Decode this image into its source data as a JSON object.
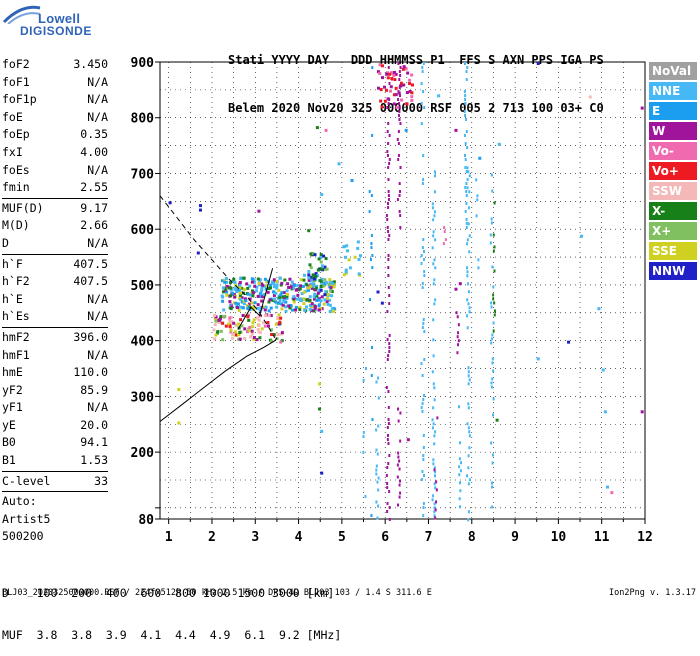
{
  "logo": {
    "line1": "Lowell",
    "line2": "DIGISONDE"
  },
  "header": {
    "line1": "Stati YYYY DAY   DDD HHMMSS P1  FFS S AXN PPS IGA PS",
    "line2": "Belem 2020 Nov20 325 000000 RSF 005 2 713 100 03+ C0"
  },
  "params": [
    {
      "k": "foF2",
      "v": "3.450"
    },
    {
      "k": "foF1",
      "v": "N/A"
    },
    {
      "k": "foF1p",
      "v": "N/A"
    },
    {
      "k": "foE",
      "v": "N/A"
    },
    {
      "k": "foEp",
      "v": "0.35"
    },
    {
      "k": "fxI",
      "v": "4.00"
    },
    {
      "k": "foEs",
      "v": "N/A"
    },
    {
      "k": "fmin",
      "v": "2.55"
    },
    {
      "sep": true
    },
    {
      "k": "MUF(D)",
      "v": "9.17"
    },
    {
      "k": "M(D)",
      "v": "2.66"
    },
    {
      "k": "D",
      "v": "N/A"
    },
    {
      "sep": true
    },
    {
      "k": "h`F",
      "v": "407.5"
    },
    {
      "k": "h`F2",
      "v": "407.5"
    },
    {
      "k": "h`E",
      "v": "N/A"
    },
    {
      "k": "h`Es",
      "v": "N/A"
    },
    {
      "sep": true
    },
    {
      "k": "hmF2",
      "v": "396.0"
    },
    {
      "k": "hmF1",
      "v": "N/A"
    },
    {
      "k": "hmE",
      "v": "110.0"
    },
    {
      "k": "yF2",
      "v": "85.9"
    },
    {
      "k": "yF1",
      "v": "N/A"
    },
    {
      "k": "yE",
      "v": "20.0"
    },
    {
      "k": "B0",
      "v": "94.1"
    },
    {
      "k": "B1",
      "v": "1.53"
    },
    {
      "sep": true
    },
    {
      "k": "C-level",
      "v": "33"
    },
    {
      "sep": true
    },
    {
      "k": "Auto:",
      "v": ""
    },
    {
      "k": "Artist5",
      "v": ""
    },
    {
      "k": "500200",
      "v": ""
    }
  ],
  "legend": [
    {
      "label": "NoVal",
      "color": "#a0a0a0"
    },
    {
      "label": "NNE",
      "color": "#45b8f5"
    },
    {
      "label": "E",
      "color": "#1c9ef0"
    },
    {
      "label": "W",
      "color": "#a0149c"
    },
    {
      "label": "Vo-",
      "color": "#f06ab0"
    },
    {
      "label": "Vo+",
      "color": "#ee1a22"
    },
    {
      "label": "SSW",
      "color": "#f4b8b8"
    },
    {
      "label": "X-",
      "color": "#188018"
    },
    {
      "label": "X+",
      "color": "#80c060"
    },
    {
      "label": "SSE",
      "color": "#d0d020"
    },
    {
      "label": "NNW",
      "color": "#2020c8"
    }
  ],
  "bottom": {
    "line1": "D    100  200  400  600  800 1000 1500 3000 [km]",
    "line2": "MUF  3.8  3.8  3.9  4.1  4.4  4.9  6.1  9.2 [MHz]"
  },
  "footer": "BLJ03_2020325000000.RSF / 224fx512h 50 kHz 2.5 km / DPS-4D BLJ03 103 / 1.4 S 311.6 E",
  "version": "Ion2Png v. 1.3.17",
  "chart_data": {
    "type": "scatter",
    "xlim": [
      0.8,
      12
    ],
    "ylim": [
      80,
      900
    ],
    "xticks": [
      1,
      2,
      3,
      4,
      5,
      6,
      7,
      8,
      9,
      10,
      11,
      12
    ],
    "yticks": [
      80,
      100,
      200,
      300,
      400,
      500,
      600,
      700,
      800,
      900
    ],
    "ytick_labels": [
      "80",
      "",
      "200",
      "300",
      "400",
      "500",
      "600",
      "700",
      "800",
      "900"
    ],
    "grid": true,
    "ionogram_trace": [
      [
        0.8,
        255
      ],
      [
        1.3,
        285
      ],
      [
        1.8,
        315
      ],
      [
        2.3,
        345
      ],
      [
        2.8,
        372
      ],
      [
        3.2,
        388
      ],
      [
        3.45,
        400
      ],
      [
        3.5,
        405
      ]
    ],
    "profile_dashed": [
      [
        0.8,
        660
      ],
      [
        1.2,
        620
      ],
      [
        1.6,
        580
      ],
      [
        2.0,
        545
      ],
      [
        2.4,
        510
      ],
      [
        2.8,
        480
      ],
      [
        3.1,
        450
      ],
      [
        3.3,
        425
      ],
      [
        3.45,
        405
      ]
    ],
    "cusp": [
      [
        2.6,
        420
      ],
      [
        2.9,
        460
      ],
      [
        3.1,
        445
      ],
      [
        3.4,
        530
      ]
    ],
    "sparse_points": [
      {
        "x": 1.7,
        "y": 645,
        "c": "#2020c8"
      },
      {
        "x": 1.7,
        "y": 637,
        "c": "#2020c8"
      },
      {
        "x": 1.65,
        "y": 560,
        "c": "#2020c8"
      },
      {
        "x": 3.05,
        "y": 635,
        "c": "#a0149c"
      },
      {
        "x": 4.4,
        "y": 785,
        "c": "#188018"
      },
      {
        "x": 4.6,
        "y": 780,
        "c": "#f06ab0"
      },
      {
        "x": 4.9,
        "y": 720,
        "c": "#45b8f5"
      },
      {
        "x": 5.2,
        "y": 690,
        "c": "#1c9ef0"
      },
      {
        "x": 4.5,
        "y": 665,
        "c": "#45b8f5"
      },
      {
        "x": 6.45,
        "y": 780,
        "c": "#1c9ef0"
      },
      {
        "x": 7.6,
        "y": 780,
        "c": "#a0149c"
      },
      {
        "x": 7.2,
        "y": 842,
        "c": "#45b8f5"
      },
      {
        "x": 9.5,
        "y": 900,
        "c": "#2020c8"
      },
      {
        "x": 10.7,
        "y": 840,
        "c": "#f4b8b8"
      },
      {
        "x": 11.9,
        "y": 820,
        "c": "#a0149c"
      },
      {
        "x": 8.15,
        "y": 730,
        "c": "#1c9ef0"
      },
      {
        "x": 8.6,
        "y": 755,
        "c": "#45b8f5"
      },
      {
        "x": 10.5,
        "y": 590,
        "c": "#45b8f5"
      },
      {
        "x": 10.2,
        "y": 400,
        "c": "#2020c8"
      },
      {
        "x": 9.5,
        "y": 370,
        "c": "#45b8f5"
      },
      {
        "x": 10.9,
        "y": 460,
        "c": "#45b8f5"
      },
      {
        "x": 11.0,
        "y": 350,
        "c": "#45b8f5"
      },
      {
        "x": 11.05,
        "y": 275,
        "c": "#45b8f5"
      },
      {
        "x": 11.9,
        "y": 275,
        "c": "#a0149c"
      },
      {
        "x": 11.1,
        "y": 140,
        "c": "#45b8f5"
      },
      {
        "x": 11.2,
        "y": 130,
        "c": "#f06ab0"
      },
      {
        "x": 4.5,
        "y": 165,
        "c": "#2020c8"
      },
      {
        "x": 4.5,
        "y": 240,
        "c": "#45b8f5"
      },
      {
        "x": 4.45,
        "y": 280,
        "c": "#188018"
      },
      {
        "x": 4.45,
        "y": 325,
        "c": "#d0d020"
      },
      {
        "x": 1.0,
        "y": 650,
        "c": "#2020c8"
      },
      {
        "x": 1.2,
        "y": 315,
        "c": "#d0d020"
      },
      {
        "x": 1.2,
        "y": 255,
        "c": "#d0d020"
      },
      {
        "x": 7.6,
        "y": 495,
        "c": "#a0149c"
      },
      {
        "x": 7.7,
        "y": 505,
        "c": "#a0149c"
      },
      {
        "x": 8.55,
        "y": 260,
        "c": "#188018"
      },
      {
        "x": 5.9,
        "y": 470,
        "c": "#2020c8"
      },
      {
        "x": 5.8,
        "y": 490,
        "c": "#2020c8"
      },
      {
        "x": 6.5,
        "y": 225,
        "c": "#a0149c"
      },
      {
        "x": 4.1,
        "y": 520,
        "c": "#45b8f5"
      },
      {
        "x": 4.6,
        "y": 550,
        "c": "#188018"
      },
      {
        "x": 4.2,
        "y": 600,
        "c": "#188018"
      }
    ],
    "columns": [
      {
        "x": 6.05,
        "from": 80,
        "to": 900,
        "c": "#a0149c",
        "density": 0.55
      },
      {
        "x": 6.3,
        "from": 600,
        "to": 900,
        "c": "#a0149c",
        "density": 0.7
      },
      {
        "x": 6.3,
        "from": 80,
        "to": 280,
        "c": "#a0149c",
        "density": 0.55
      },
      {
        "x": 5.5,
        "from": 100,
        "to": 360,
        "c": "#45b8f5",
        "density": 0.3
      },
      {
        "x": 5.8,
        "from": 80,
        "to": 350,
        "c": "#45b8f5",
        "density": 0.35
      },
      {
        "x": 6.85,
        "from": 80,
        "to": 900,
        "c": "#45b8f5",
        "density": 0.35
      },
      {
        "x": 7.1,
        "from": 80,
        "to": 720,
        "c": "#45b8f5",
        "density": 0.55
      },
      {
        "x": 7.15,
        "from": 80,
        "to": 300,
        "c": "#a0149c",
        "density": 0.2
      },
      {
        "x": 7.7,
        "from": 80,
        "to": 320,
        "c": "#45b8f5",
        "density": 0.25
      },
      {
        "x": 7.85,
        "from": 600,
        "to": 900,
        "c": "#45b8f5",
        "density": 0.7
      },
      {
        "x": 7.9,
        "from": 80,
        "to": 720,
        "c": "#45b8f5",
        "density": 0.45
      },
      {
        "x": 8.1,
        "from": 520,
        "to": 720,
        "c": "#45b8f5",
        "density": 0.3
      },
      {
        "x": 8.45,
        "from": 80,
        "to": 700,
        "c": "#45b8f5",
        "density": 0.35
      },
      {
        "x": 8.5,
        "from": 400,
        "to": 700,
        "c": "#188018",
        "density": 0.15
      },
      {
        "x": 7.35,
        "from": 560,
        "to": 620,
        "c": "#f06ab0",
        "density": 0.35
      },
      {
        "x": 7.65,
        "from": 380,
        "to": 460,
        "c": "#a0149c",
        "density": 0.6
      },
      {
        "x": 5.65,
        "from": 80,
        "to": 900,
        "c": "#1c9ef0",
        "density": 0.1
      }
    ],
    "clusters": [
      {
        "x0": 2.2,
        "x1": 4.8,
        "y0": 455,
        "y1": 515,
        "colors": [
          "#45b8f5",
          "#1c9ef0",
          "#45b8f5",
          "#188018",
          "#d0d020",
          "#a0149c"
        ],
        "count": 360
      },
      {
        "x0": 2.0,
        "x1": 3.6,
        "y0": 400,
        "y1": 450,
        "colors": [
          "#ee1a22",
          "#f06ab0",
          "#188018",
          "#d0d020",
          "#80c060",
          "#a0149c",
          "#f4b8b8"
        ],
        "count": 110
      },
      {
        "x0": 4.2,
        "x1": 4.7,
        "y0": 480,
        "y1": 560,
        "colors": [
          "#188018",
          "#45b8f5",
          "#2020c8",
          "#80c060"
        ],
        "count": 45
      },
      {
        "x0": 5.8,
        "x1": 6.6,
        "y0": 820,
        "y1": 900,
        "colors": [
          "#a0149c",
          "#f06ab0",
          "#ee1a22"
        ],
        "count": 55
      },
      {
        "x0": 5.0,
        "x1": 5.4,
        "y0": 520,
        "y1": 580,
        "colors": [
          "#45b8f5",
          "#d0d020"
        ],
        "count": 18
      }
    ]
  }
}
